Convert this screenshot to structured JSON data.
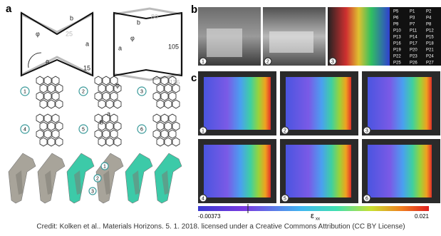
{
  "panel_a": {
    "label": "a",
    "cell_reentrant": {
      "width": "25",
      "height": "15",
      "a": "a",
      "b": "b",
      "phi": "φ",
      "theta": "θ"
    },
    "cell_hexagon": {
      "top": "80",
      "height": "105",
      "bottom": "116",
      "a": "a",
      "b": "b",
      "phi": "φ"
    },
    "designs": [
      "1",
      "2",
      "3",
      "4",
      "5",
      "6"
    ],
    "detail": {
      "a": "a",
      "b": "b",
      "phi": "φ"
    },
    "implant_markers": [
      "1",
      "2",
      "3"
    ]
  },
  "panel_b": {
    "label": "b",
    "photos": [
      "1",
      "2",
      "3"
    ],
    "table": {
      "rows": [
        [
          "P5",
          "P1",
          "P2"
        ],
        [
          "P6",
          "P3",
          "P4"
        ],
        [
          "P9",
          "P7",
          "P8"
        ],
        [
          "P10",
          "P11",
          "P12"
        ],
        [
          "P13",
          "P14",
          "P15"
        ],
        [
          "P16",
          "P17",
          "P18"
        ],
        [
          "P19",
          "P20",
          "P21"
        ],
        [
          "P22",
          "P23",
          "P24"
        ],
        [
          "P25",
          "P26",
          "P27"
        ]
      ]
    }
  },
  "panel_c": {
    "label": "c",
    "maps": [
      "1",
      "2",
      "3",
      "4",
      "5",
      "6"
    ],
    "colorbar": {
      "min": "-0.00373",
      "max": "0.021",
      "symbol": "ε",
      "subscript": "xx"
    }
  },
  "credit": "Credit: Kolken et al.. Materials Horizons. 5. 1. 2018. licensed under a Creative Commons Attribution (CC BY License)"
}
